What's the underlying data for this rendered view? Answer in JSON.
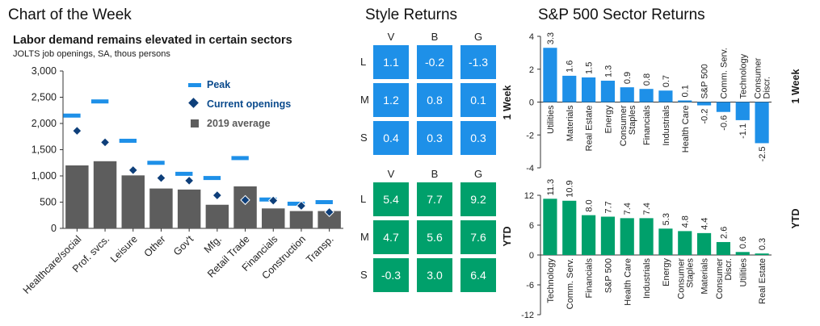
{
  "panels": {
    "left_title": "Chart of the Week",
    "style_title": "Style Returns",
    "sector_title": "S&P 500 Sector Returns"
  },
  "labor": {
    "subtitle": "Labor demand remains elevated in certain sectors",
    "subnote": "JOLTS job openings, SA, thous persons",
    "legend": {
      "peak": "Peak",
      "current": "Current openings",
      "avg": "2019 average"
    }
  },
  "style": {
    "columns": [
      "V",
      "B",
      "G"
    ],
    "rows": [
      "L",
      "M",
      "S"
    ],
    "week_label": "1 Week",
    "ytd_label": "YTD",
    "week": [
      [
        "1.1",
        "-0.2",
        "-1.3"
      ],
      [
        "1.2",
        "0.8",
        "0.1"
      ],
      [
        "0.4",
        "0.3",
        "0.3"
      ]
    ],
    "ytd": [
      [
        "5.4",
        "7.7",
        "9.2"
      ],
      [
        "4.7",
        "5.6",
        "7.6"
      ],
      [
        "-0.3",
        "3.0",
        "6.4"
      ]
    ]
  },
  "sector": {
    "week_label": "1 Week",
    "ytd_label": "YTD"
  },
  "colors": {
    "blue": "#1e90e8",
    "green": "#00a06b",
    "dark_gray": "#5d5d5d",
    "navy": "#0e3f7a"
  },
  "chart_data": [
    {
      "type": "bar",
      "title": "Labor demand remains elevated in certain sectors",
      "subtitle": "JOLTS job openings, SA, thous persons",
      "categories": [
        "Healthcare/social",
        "Prof. svcs.",
        "Leisure",
        "Other",
        "Gov't",
        "Mfg.",
        "Retail Trade",
        "Financials",
        "Construction",
        "Transp."
      ],
      "series": [
        {
          "name": "2019 average",
          "values": [
            1200,
            1280,
            1010,
            760,
            740,
            450,
            800,
            380,
            330,
            330
          ]
        },
        {
          "name": "Peak",
          "values": [
            2150,
            2420,
            1670,
            1250,
            1040,
            960,
            1340,
            550,
            470,
            500
          ]
        },
        {
          "name": "Current openings",
          "values": [
            1860,
            1640,
            1110,
            960,
            910,
            630,
            540,
            530,
            430,
            310
          ]
        }
      ],
      "ylim": [
        0,
        3000
      ],
      "yticks": [
        "0",
        "500",
        "1,000",
        "1,500",
        "2,000",
        "2,500",
        "3,000"
      ]
    },
    {
      "type": "bar",
      "series_label": "1 Week",
      "categories": [
        "Utilities",
        "Materials",
        "Real Estate",
        "Energy",
        "Consumer Staples",
        "Financials",
        "Industrials",
        "Health Care",
        "S&P 500",
        "Comm. Serv.",
        "Technology",
        "Consumer Discr."
      ],
      "values": [
        3.3,
        1.6,
        1.5,
        1.3,
        0.9,
        0.8,
        0.7,
        0.1,
        -0.2,
        -0.6,
        -1.1,
        -2.5
      ],
      "value_labels": [
        "3.3",
        "1.6",
        "1.5",
        "1.3",
        "0.9",
        "0.8",
        "0.7",
        "0.1",
        "-0.2",
        "-0.6",
        "-1.1",
        "-2.5"
      ],
      "ylim": [
        -4,
        4
      ],
      "yticks": [
        "-4",
        "-2",
        "0",
        "2",
        "4"
      ]
    },
    {
      "type": "bar",
      "series_label": "YTD",
      "categories": [
        "Technology",
        "Comm. Serv.",
        "Financials",
        "S&P 500",
        "Health Care",
        "Industrials",
        "Energy",
        "Consumer Staples",
        "Materials",
        "Consumer Discr.",
        "Utilities",
        "Real Estate"
      ],
      "values": [
        11.3,
        10.9,
        8.0,
        7.7,
        7.4,
        7.4,
        5.3,
        4.8,
        4.4,
        2.6,
        0.6,
        0.3
      ],
      "value_labels": [
        "11.3",
        "10.9",
        "8.0",
        "7.7",
        "7.4",
        "7.4",
        "5.3",
        "4.8",
        "4.4",
        "2.6",
        "0.6",
        "0.3"
      ],
      "ylim": [
        -12,
        12
      ],
      "yticks": [
        "-12",
        "-6",
        "0",
        "6",
        "12"
      ]
    }
  ]
}
